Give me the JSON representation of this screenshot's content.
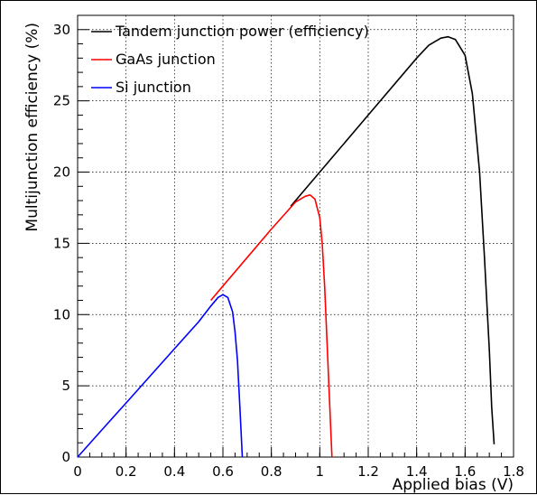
{
  "chart_data": {
    "type": "line",
    "xlabel": "Applied bias (V)",
    "ylabel": "Multijunction efficiency (%)",
    "xlim": [
      0,
      1.8
    ],
    "ylim": [
      0,
      31
    ],
    "x_ticks": [
      "0",
      "0.2",
      "0.4",
      "0.6",
      "0.8",
      "1",
      "1.2",
      "1.4",
      "1.6",
      "1.8"
    ],
    "x_tick_values": [
      0,
      0.2,
      0.4,
      0.6,
      0.8,
      1.0,
      1.2,
      1.4,
      1.6,
      1.8
    ],
    "y_ticks": [
      "0",
      "5",
      "10",
      "15",
      "20",
      "25",
      "30"
    ],
    "y_tick_values": [
      0,
      5,
      10,
      15,
      20,
      25,
      30
    ],
    "grid": true,
    "legend_position": "top-left",
    "series": [
      {
        "name": "Tandem junction power (efficiency)",
        "color": "#000000",
        "points": [
          [
            0.88,
            17.6
          ],
          [
            1.0,
            20.0
          ],
          [
            1.2,
            24.0
          ],
          [
            1.4,
            28.0
          ],
          [
            1.45,
            28.9
          ],
          [
            1.5,
            29.4
          ],
          [
            1.53,
            29.5
          ],
          [
            1.56,
            29.3
          ],
          [
            1.6,
            28.2
          ],
          [
            1.63,
            25.5
          ],
          [
            1.66,
            20.0
          ],
          [
            1.68,
            14.0
          ],
          [
            1.7,
            7.5
          ],
          [
            1.71,
            3.5
          ],
          [
            1.72,
            0.9
          ]
        ]
      },
      {
        "name": "GaAs junction",
        "color": "#ff0000",
        "points": [
          [
            0.55,
            11.0
          ],
          [
            0.6,
            12.0
          ],
          [
            0.7,
            14.0
          ],
          [
            0.8,
            16.0
          ],
          [
            0.9,
            17.9
          ],
          [
            0.94,
            18.3
          ],
          [
            0.96,
            18.4
          ],
          [
            0.98,
            18.1
          ],
          [
            1.0,
            16.8
          ],
          [
            1.01,
            15.0
          ],
          [
            1.02,
            12.0
          ],
          [
            1.03,
            8.0
          ],
          [
            1.04,
            4.0
          ],
          [
            1.05,
            0.0
          ]
        ]
      },
      {
        "name": "Si junction",
        "color": "#0000ff",
        "points": [
          [
            0.0,
            0.0
          ],
          [
            0.1,
            1.9
          ],
          [
            0.2,
            3.8
          ],
          [
            0.3,
            5.7
          ],
          [
            0.4,
            7.6
          ],
          [
            0.5,
            9.5
          ],
          [
            0.55,
            10.6
          ],
          [
            0.58,
            11.2
          ],
          [
            0.6,
            11.4
          ],
          [
            0.62,
            11.2
          ],
          [
            0.64,
            10.2
          ],
          [
            0.65,
            8.8
          ],
          [
            0.66,
            6.8
          ],
          [
            0.67,
            3.5
          ],
          [
            0.68,
            0.0
          ]
        ]
      }
    ]
  }
}
